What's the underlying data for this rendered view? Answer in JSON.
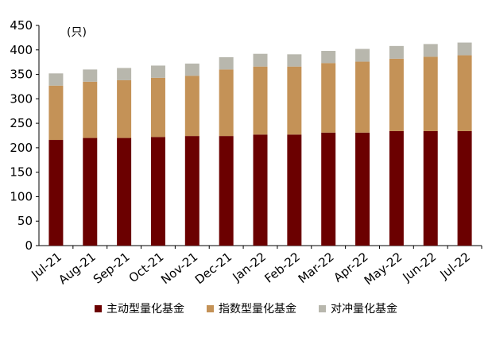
{
  "chart_data": {
    "type": "bar",
    "stacked": true,
    "unit_label": "(只)",
    "categories": [
      "Jul-21",
      "Aug-21",
      "Sep-21",
      "Oct-21",
      "Nov-21",
      "Dec-21",
      "Jan-22",
      "Feb-22",
      "Mar-22",
      "Apr-22",
      "May-22",
      "Jun-22",
      "Jul-22"
    ],
    "series": [
      {
        "name": "主动型量化基金",
        "color": "#6b0000",
        "values": [
          216,
          220,
          220,
          222,
          224,
          224,
          227,
          227,
          231,
          231,
          234,
          234,
          234
        ]
      },
      {
        "name": "指数型量化基金",
        "color": "#c49257",
        "values": [
          111,
          115,
          118,
          121,
          123,
          136,
          139,
          139,
          142,
          145,
          148,
          152,
          155
        ]
      },
      {
        "name": "对冲量化基金",
        "color": "#b8b7ad",
        "values": [
          25,
          25,
          25,
          25,
          25,
          25,
          26,
          25,
          25,
          26,
          26,
          26,
          26
        ]
      }
    ],
    "ylim": [
      0,
      450
    ],
    "yticks": [
      0,
      50,
      100,
      150,
      200,
      250,
      300,
      350,
      400,
      450
    ],
    "legend_position": "bottom",
    "grid": false
  }
}
